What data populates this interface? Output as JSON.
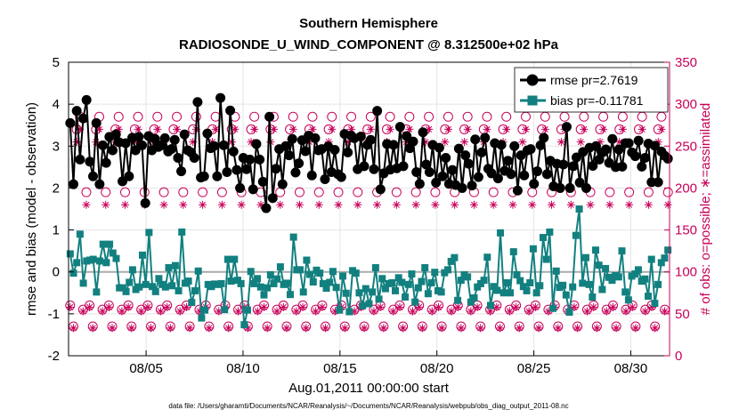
{
  "chart_data": {
    "type": "line",
    "title": "Southern Hemisphere",
    "subtitle": "RADIOSONDE_U_WIND_COMPONENT @ 8.312500e+02 hPa",
    "xlabel": "Aug.01,2011 00:00:00 start",
    "ylabel": "rmse and bias (model - observation)",
    "y2label": "# of obs: o=possible; ∗=assimilated",
    "footnote": "data file: /Users/gharamti/Documents/NCAR/Reanalysis/~/Documents/NCAR/Reanalysis/webpub/obs_diag_output_2011-08.nc",
    "xlim": [
      1,
      32
    ],
    "ylim": [
      -2,
      5
    ],
    "y2lim": [
      0,
      350
    ],
    "x_ticks": [
      5,
      10,
      15,
      20,
      25,
      30
    ],
    "x_tick_labels": [
      "08/05",
      "08/10",
      "08/15",
      "08/20",
      "08/25",
      "08/30"
    ],
    "y_ticks": [
      -2,
      -1,
      0,
      1,
      2,
      3,
      4,
      5
    ],
    "y_tick_labels": [
      "-2",
      "-1",
      "0",
      "1",
      "2",
      "3",
      "4",
      "5"
    ],
    "y2_ticks": [
      0,
      50,
      100,
      150,
      200,
      250,
      300,
      350
    ],
    "y2_tick_labels": [
      "0",
      "50",
      "100",
      "150",
      "200",
      "250",
      "300",
      "350"
    ],
    "legend": [
      "rmse pr=2.7619",
      "bias pr=-0.11781"
    ],
    "colors": {
      "rmse": "#000000",
      "bias": "#138080",
      "obs": "#c8005a",
      "zero": "#aaaaaa"
    },
    "series": [
      {
        "name": "rmse",
        "values": [
          3.55,
          2.09,
          3.84,
          2.68,
          3.66,
          4.1,
          2.63,
          2.28,
          3.55,
          2.09,
          3.02,
          2.6,
          3.22,
          2.9,
          3.28,
          3.09,
          2.16,
          3.07,
          2.28,
          3.2,
          2.9,
          3.22,
          3.02,
          1.64,
          3.24,
          2.9,
          3.17,
          2.98,
          3.02,
          3.19,
          2.87,
          2.93,
          3.15,
          2.72,
          2.4,
          3.28,
          2.9,
          2.85,
          2.72,
          4.05,
          2.25,
          2.28,
          3.3,
          2.95,
          3.0,
          2.28,
          4.15,
          3.02,
          2.38,
          3.85,
          2.87,
          2.43,
          2.0,
          2.72,
          2.45,
          2.68,
          1.97,
          3.05,
          2.68,
          2.15,
          1.52,
          3.7,
          1.76,
          2.46,
          2.93,
          2.09,
          3.0,
          2.78,
          3.17,
          2.37,
          2.59,
          3.14,
          2.88,
          3.25,
          2.3,
          3.19,
          2.9,
          2.93,
          2.21,
          2.99,
          2.38,
          2.91,
          2.33,
          2.26,
          3.29,
          2.85,
          3.25,
          3.19,
          2.45,
          3.23,
          2.52,
          3.03,
          3.15,
          2.45,
          3.84,
          1.97,
          2.35,
          3.05,
          2.44,
          3.03,
          2.47,
          3.46,
          2.52,
          3.24,
          2.95,
          3.11,
          2.38,
          2.1,
          3.33,
          2.56,
          2.38,
          3.03,
          2.13,
          2.96,
          2.28,
          2.72,
          2.1,
          2.43,
          2.07,
          2.94,
          2.0,
          2.78,
          2.58,
          2.06,
          3.16,
          2.26,
          2.85,
          3.2,
          2.46,
          2.35,
          3.07,
          2.23,
          3.03,
          2.41,
          2.65,
          2.33,
          3.0,
          1.94,
          2.78,
          2.3,
          2.9,
          2.93,
          2.1,
          2.4,
          3.02,
          3.2,
          2.33,
          2.65,
          2.04,
          2.58,
          2.0,
          2.56,
          3.46,
          2.0,
          2.52,
          2.73,
          2.13,
          2.86,
          2.0,
          2.96,
          2.53,
          3.0,
          2.68,
          2.85,
          2.92,
          2.6,
          3.17,
          2.5,
          2.92,
          2.51,
          3.07,
          3.07,
          2.85,
          2.76,
          3.13,
          2.51,
          2.72,
          3.06,
          2.14,
          3.01,
          2.14,
          2.87,
          2.77,
          2.7
        ]
      },
      {
        "name": "bias",
        "values": [
          0.43,
          -0.03,
          0.22,
          0.9,
          -0.27,
          0.26,
          0.28,
          0.3,
          -0.48,
          0.26,
          0.66,
          0.22,
          0.66,
          0.45,
          0.32,
          -0.38,
          -0.38,
          -0.47,
          -0.25,
          0.05,
          -0.42,
          -0.36,
          0.4,
          -0.3,
          0.94,
          -0.35,
          -0.47,
          -0.16,
          -0.3,
          -0.36,
          0.1,
          -0.33,
          0.15,
          -0.45,
          0.95,
          -0.27,
          -0.22,
          -0.73,
          -0.45,
          0.02,
          -1.1,
          -0.91,
          -0.3,
          -0.35,
          -0.29,
          -0.3,
          -0.28,
          -0.9,
          0.3,
          -0.22,
          0.3,
          -0.2,
          -0.28,
          -1.26,
          -0.91,
          0.01,
          -0.28,
          -0.16,
          -0.36,
          -0.55,
          -0.38,
          -0.07,
          -0.28,
          -0.17,
          0.12,
          -0.3,
          -0.27,
          -0.54,
          0.83,
          0.05,
          0.05,
          -0.48,
          0.28,
          -0.06,
          -0.24,
          0.04,
          -0.03,
          -0.28,
          -0.39,
          -0.25,
          0.01,
          -0.37,
          -0.91,
          -0.1,
          -0.51,
          -0.95,
          0.03,
          -0.03,
          -0.5,
          -0.81,
          -0.4,
          -0.76,
          -0.48,
          0.1,
          -0.65,
          -0.16,
          -0.4,
          -0.28,
          -0.26,
          -0.45,
          -0.14,
          -0.25,
          -0.6,
          -0.3,
          -0.05,
          -0.72,
          -0.38,
          -0.23,
          0.1,
          -0.52,
          -0.26,
          -0.01,
          -0.45,
          -0.48,
          -0.02,
          0.05,
          0.25,
          0.34,
          -0.68,
          -0.2,
          -0.07,
          -0.12,
          -0.72,
          -0.62,
          -0.36,
          -0.28,
          -0.2,
          0.35,
          -0.8,
          -0.35,
          -0.44,
          0.93,
          -0.5,
          -0.26,
          -0.5,
          0.48,
          -0.07,
          -0.21,
          -0.35,
          -0.45,
          -0.26,
          0.55,
          -0.5,
          -0.33,
          0.82,
          0.3,
          0.95,
          -0.87,
          0.02,
          -0.37,
          -0.32,
          -0.55,
          -0.96,
          -0.36,
          0.87,
          1.5,
          -0.27,
          0.34,
          -0.3,
          -0.6,
          0.52,
          0.16,
          -0.42,
          0.08,
          -0.13,
          -0.2,
          -0.09,
          -0.12,
          0.5,
          -0.48,
          -0.67,
          -0.1,
          -0.05,
          0.05,
          -0.22,
          -0.17,
          -0.58,
          0.3,
          -0.75,
          -0.3,
          0.22,
          0.33,
          0.52
        ]
      }
    ],
    "obs": {
      "cycles": [
        6,
        6,
        6,
        6,
        6,
        6,
        6,
        6,
        6,
        6,
        6,
        6,
        6,
        6,
        6,
        6,
        6,
        6,
        6,
        6,
        6,
        6,
        6,
        6,
        6,
        6,
        6,
        6,
        6,
        6,
        6
      ],
      "possible_pattern": [
        60,
        35,
        270,
        285,
        55,
        195
      ],
      "assimilated_pattern": [
        58,
        33,
        255,
        270,
        53,
        180
      ]
    }
  }
}
